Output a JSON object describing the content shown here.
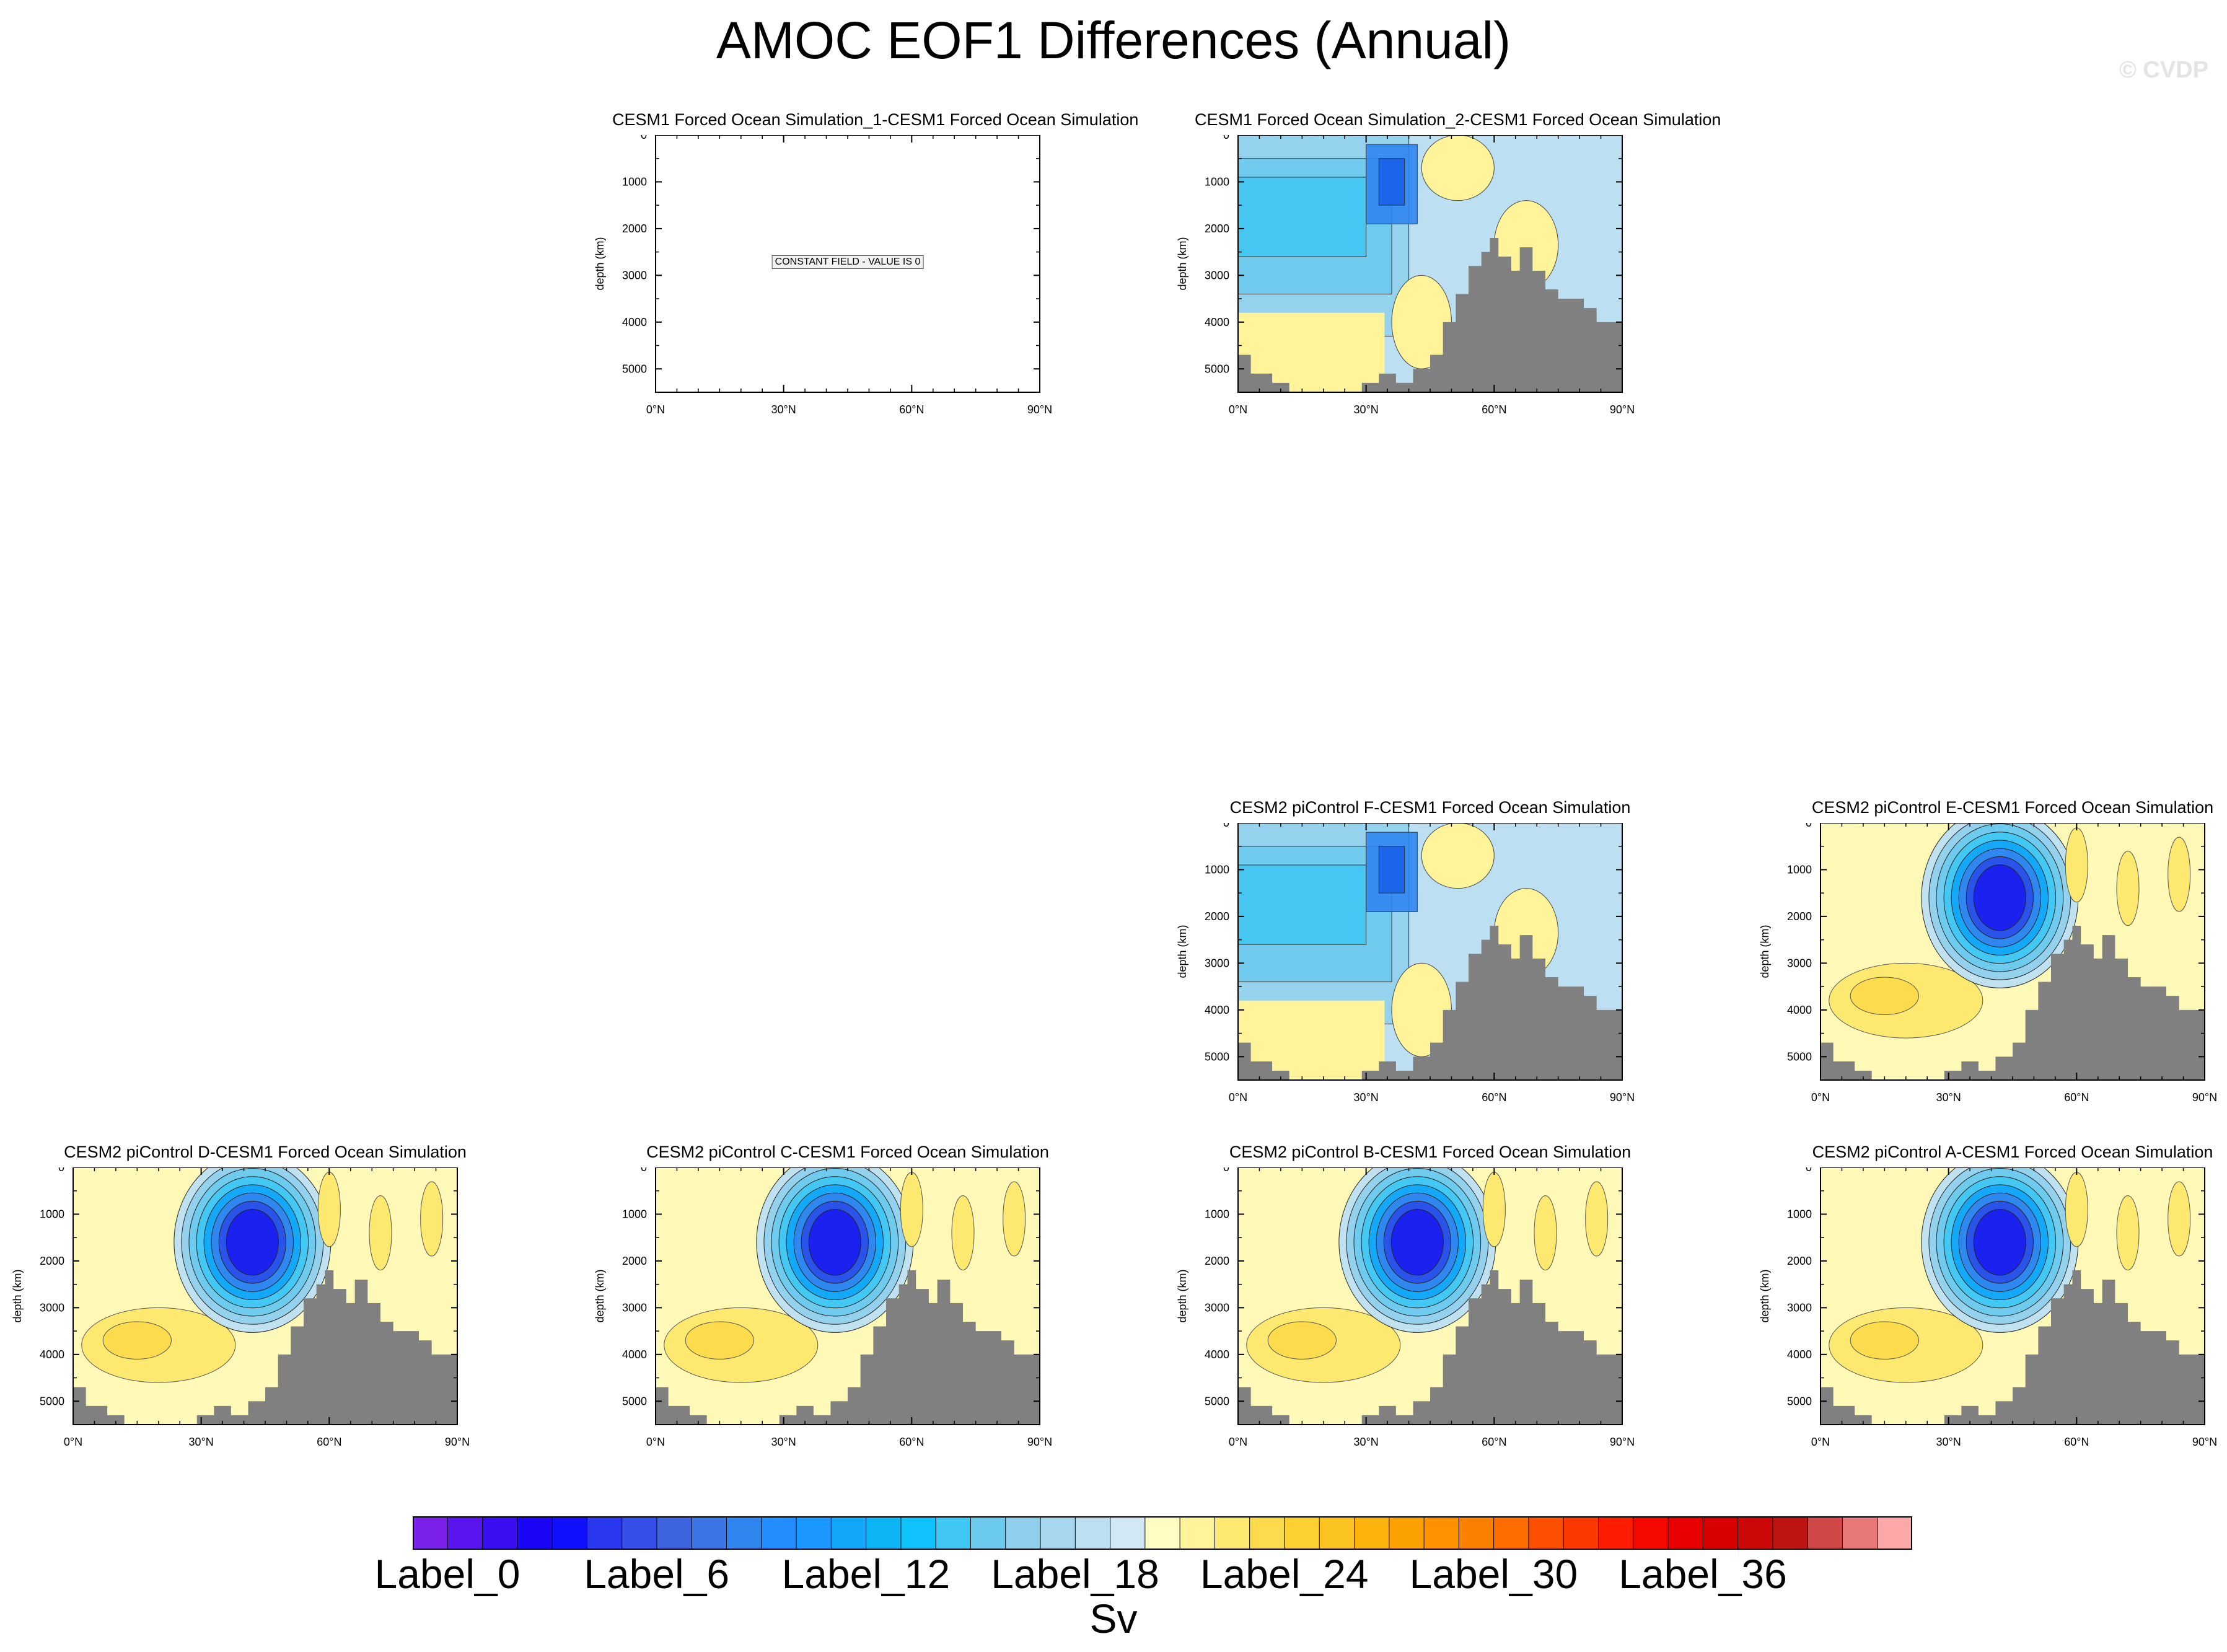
{
  "page": {
    "title": "AMOC EOF1 Differences (Annual)",
    "copyright": "© CVDP"
  },
  "chart_data": [
    {
      "type": "heatmap",
      "title": "CESM1 Forced Ocean Simulation_1-CESM1 Forced Ocean Simulation",
      "ylabel": "depth (km)",
      "xticks": [
        "0°N",
        "30°N",
        "60°N",
        "90°N"
      ],
      "yticks": [
        "0",
        "1000",
        "2000",
        "3000",
        "4000",
        "5000"
      ],
      "xlim": [
        0,
        90
      ],
      "ylim": [
        0,
        5500
      ],
      "constant_label": "CONSTANT FIELD - VALUE IS 0",
      "pattern": "constant",
      "cell": {
        "col": 0,
        "row": 0
      }
    },
    {
      "type": "heatmap",
      "title": "CESM1 Forced Ocean Simulation_2-CESM1 Forced Ocean Simulation",
      "ylabel": "depth (km)",
      "xticks": [
        "0°N",
        "30°N",
        "60°N",
        "90°N"
      ],
      "yticks": [
        "0",
        "1000",
        "2000",
        "3000",
        "4000",
        "5000"
      ],
      "xlim": [
        0,
        90
      ],
      "ylim": [
        0,
        5500
      ],
      "pattern": "wideblue",
      "cell": {
        "col": 1,
        "row": 0
      }
    },
    {
      "type": "heatmap",
      "title": "CESM2 piControl F-CESM1 Forced Ocean Simulation",
      "ylabel": "depth (km)",
      "xticks": [
        "0°N",
        "30°N",
        "60°N",
        "90°N"
      ],
      "yticks": [
        "0",
        "1000",
        "2000",
        "3000",
        "4000",
        "5000"
      ],
      "xlim": [
        0,
        90
      ],
      "ylim": [
        0,
        5500
      ],
      "pattern": "wideblue2",
      "cell": {
        "col": 1,
        "row": 1
      }
    },
    {
      "type": "heatmap",
      "title": "CESM2 piControl E-CESM1 Forced Ocean Simulation",
      "ylabel": "depth (km)",
      "xticks": [
        "0°N",
        "30°N",
        "60°N",
        "90°N"
      ],
      "yticks": [
        "0",
        "1000",
        "2000",
        "3000",
        "4000",
        "5000"
      ],
      "xlim": [
        0,
        90
      ],
      "ylim": [
        0,
        5500
      ],
      "pattern": "cell",
      "cell": {
        "col": 2,
        "row": 1
      }
    },
    {
      "type": "heatmap",
      "title": "CESM2 piControl D-CESM1 Forced Ocean Simulation",
      "ylabel": "depth (km)",
      "xticks": [
        "0°N",
        "30°N",
        "60°N",
        "90°N"
      ],
      "yticks": [
        "0",
        "1000",
        "2000",
        "3000",
        "4000",
        "5000"
      ],
      "xlim": [
        0,
        90
      ],
      "ylim": [
        0,
        5500
      ],
      "pattern": "cell",
      "cell": {
        "col": -1,
        "row": 2
      }
    },
    {
      "type": "heatmap",
      "title": "CESM2 piControl C-CESM1 Forced Ocean Simulation",
      "ylabel": "depth (km)",
      "xticks": [
        "0°N",
        "30°N",
        "60°N",
        "90°N"
      ],
      "yticks": [
        "0",
        "1000",
        "2000",
        "3000",
        "4000",
        "5000"
      ],
      "xlim": [
        0,
        90
      ],
      "ylim": [
        0,
        5500
      ],
      "pattern": "cell",
      "cell": {
        "col": 0,
        "row": 2
      }
    },
    {
      "type": "heatmap",
      "title": "CESM2 piControl B-CESM1 Forced Ocean Simulation",
      "ylabel": "depth (km)",
      "xticks": [
        "0°N",
        "30°N",
        "60°N",
        "90°N"
      ],
      "yticks": [
        "0",
        "1000",
        "2000",
        "3000",
        "4000",
        "5000"
      ],
      "xlim": [
        0,
        90
      ],
      "ylim": [
        0,
        5500
      ],
      "pattern": "cell",
      "cell": {
        "col": 1,
        "row": 2
      }
    },
    {
      "type": "heatmap",
      "title": "CESM2 piControl A-CESM1 Forced Ocean Simulation",
      "ylabel": "depth (km)",
      "xticks": [
        "0°N",
        "30°N",
        "60°N",
        "90°N"
      ],
      "yticks": [
        "0",
        "1000",
        "2000",
        "3000",
        "4000",
        "5000"
      ],
      "xlim": [
        0,
        90
      ],
      "ylim": [
        0,
        5500
      ],
      "pattern": "cell",
      "cell": {
        "col": 2,
        "row": 2
      }
    }
  ],
  "colorbar": {
    "colors": [
      "#7b22ea",
      "#5a14ee",
      "#3a0cf0",
      "#1a06f4",
      "#1010ff",
      "#2a38f0",
      "#3550e8",
      "#3e64e0",
      "#3a76e6",
      "#2f86ee",
      "#238cff",
      "#1a98ff",
      "#12a6f8",
      "#0cb4f4",
      "#10c2fc",
      "#40c6f2",
      "#6ccaee",
      "#90d0ec",
      "#a8d6ee",
      "#bcdff2",
      "#d2e8f6",
      "#fffcc4",
      "#fff49a",
      "#fde870",
      "#fcdc4c",
      "#fcd030",
      "#fcc420",
      "#fcb20c",
      "#fca200",
      "#fc9200",
      "#fc8000",
      "#fc6c00",
      "#fc5000",
      "#fc3800",
      "#fc1c00",
      "#f40800",
      "#e80000",
      "#d80000",
      "#cc0808",
      "#c01414",
      "#d04848",
      "#e87878",
      "#fca8a8"
    ],
    "labels": [
      "Label_0",
      "Label_6",
      "Label_12",
      "Label_18",
      "Label_24",
      "Label_30",
      "Label_36"
    ],
    "units": "Sv"
  }
}
